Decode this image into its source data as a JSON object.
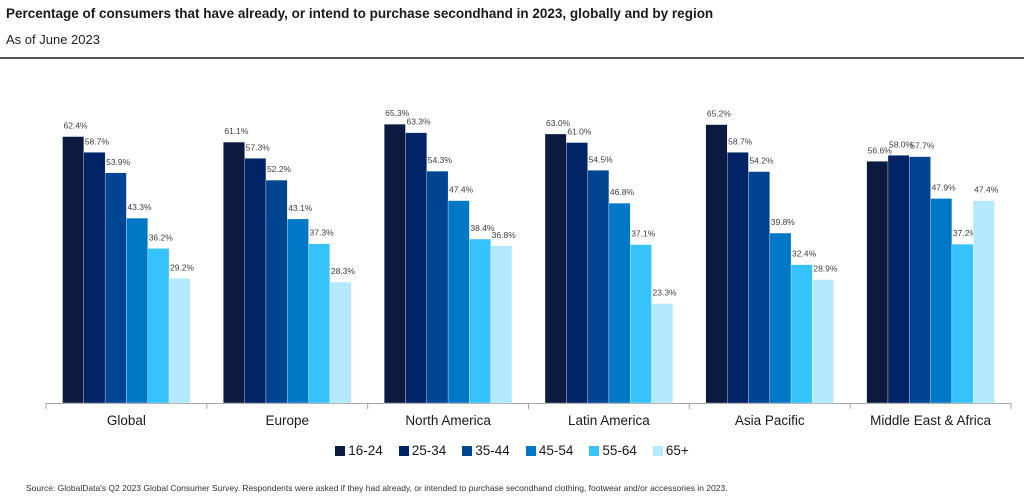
{
  "title": "Percentage of consumers that have already, or intend to purchase secondhand in 2023, globally and by region",
  "subtitle": "As of June 2023",
  "source": "Source: GlobalData's Q2 2023 Global Consumer Survey. Respondents were asked if they had already, or intended to purchase secondhand clothing, footwear and/or accessories in 2023.",
  "chart_data": {
    "type": "bar",
    "title": "Percentage of consumers that have already, or intend to purchase secondhand in 2023, globally and by region",
    "subtitle": "As of June 2023",
    "xlabel": "",
    "ylabel": "",
    "ylim": [
      0,
      70
    ],
    "grid": false,
    "legend_position": "bottom",
    "value_suffix": "%",
    "categories": [
      "Global",
      "Europe",
      "North America",
      "Latin America",
      "Asia Pacific",
      "Middle East & Africa"
    ],
    "series": [
      {
        "name": "16-24",
        "color": "#0d1a3f",
        "values": [
          62.4,
          61.1,
          65.3,
          63.0,
          65.2,
          56.6
        ]
      },
      {
        "name": "25-34",
        "color": "#002466",
        "values": [
          58.7,
          57.3,
          63.3,
          61.0,
          58.7,
          58.0
        ]
      },
      {
        "name": "35-44",
        "color": "#004592",
        "values": [
          53.9,
          52.2,
          54.3,
          54.5,
          54.2,
          57.7
        ]
      },
      {
        "name": "45-54",
        "color": "#0078c5",
        "values": [
          43.3,
          43.1,
          47.4,
          46.8,
          39.8,
          47.9
        ]
      },
      {
        "name": "55-64",
        "color": "#36c2fd",
        "values": [
          36.2,
          37.3,
          38.4,
          37.1,
          32.4,
          37.2
        ]
      },
      {
        "name": "65+",
        "color": "#b3e8fd",
        "values": [
          29.2,
          28.3,
          36.8,
          23.3,
          28.9,
          47.4
        ]
      }
    ]
  }
}
